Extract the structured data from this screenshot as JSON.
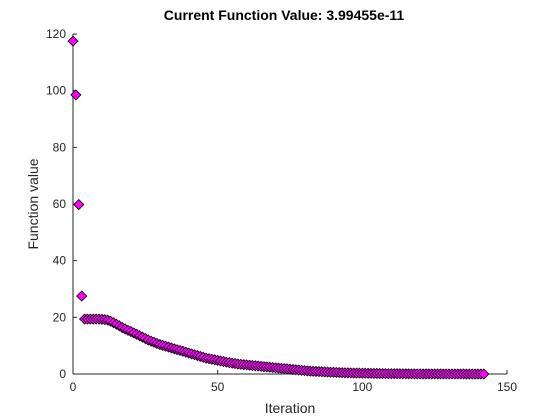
{
  "chart_data": {
    "type": "scatter",
    "title": "Current Function Value: 3.99455e-11",
    "xlabel": "Iteration",
    "ylabel": "Function value",
    "xlim": [
      0,
      150
    ],
    "ylim": [
      0,
      120
    ],
    "xticks": [
      0,
      50,
      100,
      150
    ],
    "yticks": [
      0,
      20,
      40,
      60,
      80,
      100,
      120
    ],
    "grid": false,
    "marker": "diamond",
    "marker_color": "#ff00ff",
    "marker_edge_color": "#000000",
    "series": [
      {
        "x": [
          0,
          1,
          2,
          3,
          4,
          5,
          6,
          7,
          8,
          9,
          10,
          11,
          12,
          13,
          14,
          15,
          16,
          17,
          18,
          19,
          20,
          21,
          22,
          23,
          24,
          25,
          26,
          27,
          28,
          29,
          30,
          31,
          32,
          33,
          34,
          35,
          36,
          37,
          38,
          39,
          40,
          41,
          42,
          43,
          44,
          45,
          46,
          47,
          48,
          49,
          50,
          51,
          52,
          53,
          54,
          55,
          56,
          57,
          58,
          59,
          60,
          61,
          62,
          63,
          64,
          65,
          66,
          67,
          68,
          69,
          70,
          71,
          72,
          73,
          74,
          75,
          76,
          77,
          78,
          79,
          80,
          81,
          82,
          83,
          84,
          85,
          86,
          87,
          88,
          89,
          90,
          91,
          92,
          93,
          94,
          95,
          96,
          97,
          98,
          99,
          100,
          101,
          102,
          103,
          104,
          105,
          106,
          107,
          108,
          109,
          110,
          111,
          112,
          113,
          114,
          115,
          116,
          117,
          118,
          119,
          120,
          121,
          122,
          123,
          124,
          125,
          126,
          127,
          128,
          129,
          130,
          131,
          132,
          133,
          134,
          135,
          136,
          137,
          138,
          139,
          140,
          141,
          142
        ],
        "y": [
          117.5,
          98.5,
          59.8,
          27.5,
          19.4,
          19.4,
          19.4,
          19.4,
          19.4,
          19.4,
          19.3,
          19.2,
          19.0,
          18.6,
          18.1,
          17.6,
          17.0,
          16.4,
          15.9,
          15.4,
          15.0,
          14.5,
          14.0,
          13.5,
          13.0,
          12.5,
          12.0,
          11.6,
          11.2,
          10.8,
          10.4,
          10.1,
          9.8,
          9.5,
          9.2,
          8.9,
          8.6,
          8.3,
          8.0,
          7.7,
          7.4,
          7.1,
          6.8,
          6.5,
          6.2,
          5.9,
          5.6,
          5.4,
          5.2,
          5.0,
          4.8,
          4.6,
          4.4,
          4.2,
          4.0,
          3.8,
          3.7,
          3.5,
          3.4,
          3.3,
          3.2,
          3.1,
          3.0,
          2.9,
          2.8,
          2.7,
          2.6,
          2.5,
          2.4,
          2.3,
          2.2,
          2.1,
          2.0,
          1.9,
          1.8,
          1.7,
          1.6,
          1.5,
          1.4,
          1.3,
          1.2,
          1.1,
          1.0,
          0.95,
          0.9,
          0.85,
          0.8,
          0.75,
          0.7,
          0.65,
          0.6,
          0.55,
          0.5,
          0.47,
          0.44,
          0.41,
          0.38,
          0.35,
          0.33,
          0.31,
          0.29,
          0.27,
          0.25,
          0.23,
          0.21,
          0.19,
          0.17,
          0.15,
          0.14,
          0.13,
          0.12,
          0.11,
          0.1,
          0.09,
          0.08,
          0.07,
          0.06,
          0.05,
          0.045,
          0.04,
          0.035,
          0.03,
          0.025,
          0.02,
          0.018,
          0.016,
          0.014,
          0.012,
          0.01,
          0.008,
          0.006,
          0.005,
          0.004,
          0.003,
          0.002,
          0.0015,
          0.001,
          0.0008,
          0.0006,
          0.0004,
          0.0002,
          0.0001,
          4e-11
        ]
      }
    ]
  }
}
